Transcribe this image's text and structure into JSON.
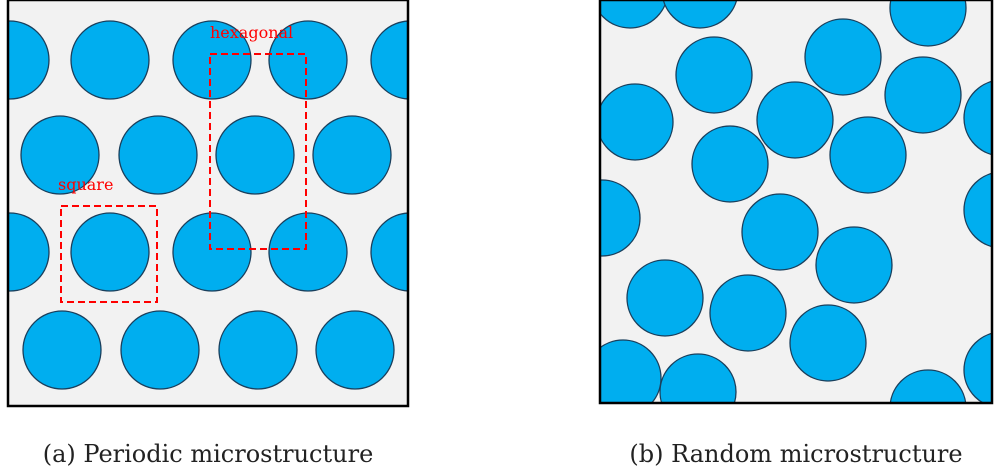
{
  "panel_a": {
    "caption": "(a) Periodic microstructure",
    "annotations": {
      "hexagonal_label": "hexagonal",
      "square_label": "square"
    }
  },
  "panel_b": {
    "caption": "(b) Random microstructure"
  },
  "colors": {
    "fiber_fill": "#00AEEF",
    "fiber_stroke": "#1a3f5c",
    "matrix_fill": "#F2F2F2",
    "border": "#000000",
    "annotation": "#ff0000"
  }
}
